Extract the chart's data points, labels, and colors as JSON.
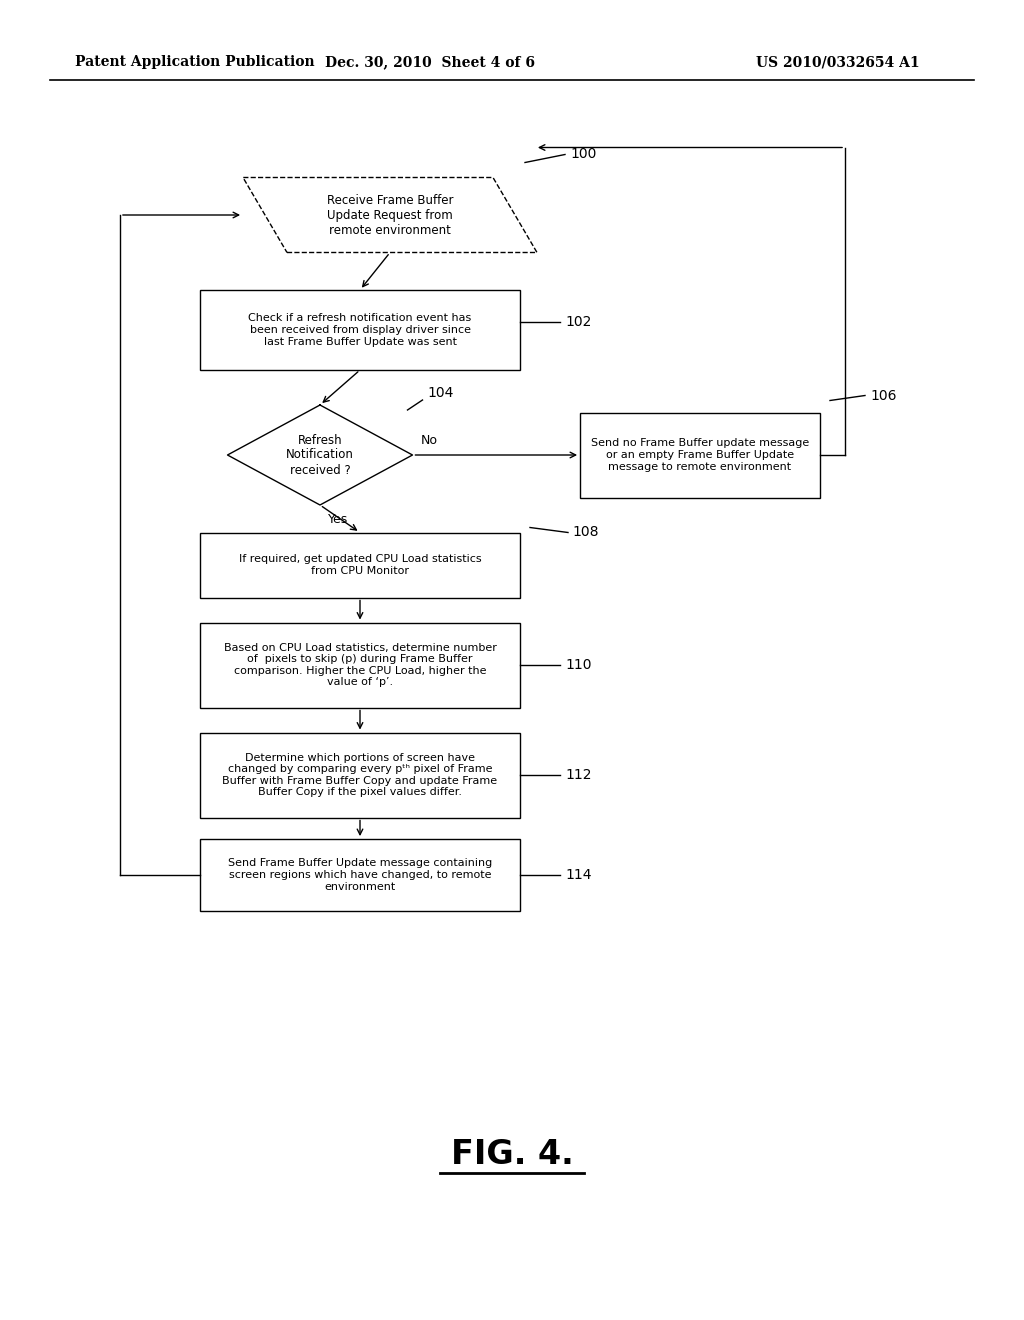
{
  "bg_color": "#ffffff",
  "header_left": "Patent Application Publication",
  "header_mid": "Dec. 30, 2010  Sheet 4 of 6",
  "header_right": "US 2010/0332654 A1",
  "fig_label": "FIG. 4."
}
